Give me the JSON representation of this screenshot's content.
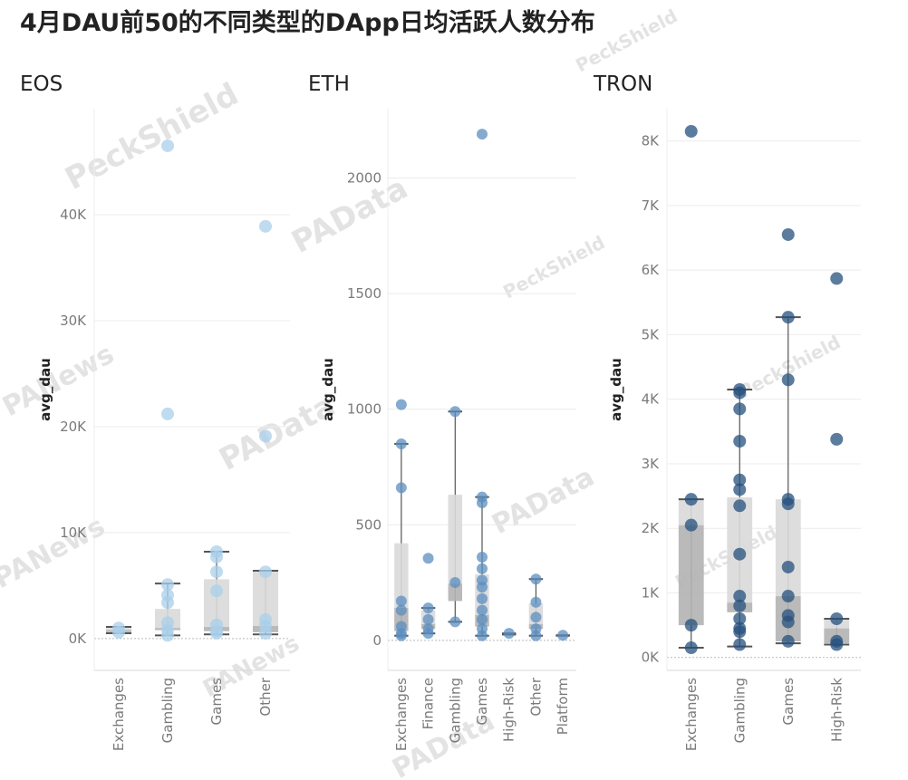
{
  "title": "4月DAU前50的不同类型的DApp日均活跃人数分布",
  "watermarks": [
    "PeckShield",
    "PAData",
    "PANews"
  ],
  "chart_data": [
    {
      "type": "box",
      "title": "EOS",
      "ylabel": "avg_dau",
      "color": "#a9cfeb",
      "ylim": [
        -3000,
        50000
      ],
      "yticks": [
        0,
        10000,
        20000,
        30000,
        40000
      ],
      "ytick_labels": [
        "0K",
        "10K",
        "20K",
        "30K",
        "40K"
      ],
      "categories": [
        "Exchanges",
        "Gambling",
        "Games",
        "Other"
      ],
      "boxes": [
        {
          "category": "Exchanges",
          "min": 500,
          "q1": 600,
          "median": 800,
          "q3": 1000,
          "max": 1100
        },
        {
          "category": "Gambling",
          "min": 300,
          "q1": 800,
          "median": 1000,
          "q3": 2800,
          "max": 5200
        },
        {
          "category": "Games",
          "min": 400,
          "q1": 700,
          "median": 1100,
          "q3": 5600,
          "max": 8200
        },
        {
          "category": "Other",
          "min": 400,
          "q1": 600,
          "median": 1200,
          "q3": 6400,
          "max": 6400
        }
      ],
      "points": [
        {
          "category": "Exchanges",
          "values": [
            600,
            1000
          ]
        },
        {
          "category": "Gambling",
          "values": [
            46500,
            21200,
            5100,
            4100,
            3400,
            1500,
            800,
            300
          ]
        },
        {
          "category": "Games",
          "values": [
            8200,
            7700,
            6300,
            4500,
            1300,
            700,
            500
          ]
        },
        {
          "category": "Other",
          "values": [
            38900,
            19100,
            6300,
            1800,
            1200,
            500
          ]
        }
      ]
    },
    {
      "type": "box",
      "title": "ETH",
      "ylabel": "avg_dau",
      "color": "#5b8dbf",
      "ylim": [
        -130,
        2300
      ],
      "yticks": [
        0,
        500,
        1000,
        1500,
        2000
      ],
      "ytick_labels": [
        "0",
        "500",
        "1000",
        "1500",
        "2000"
      ],
      "categories": [
        "Exchanges",
        "Finance",
        "Gambling",
        "Games",
        "High-Risk",
        "Other",
        "Platform"
      ],
      "boxes": [
        {
          "category": "Exchanges",
          "min": 20,
          "q1": 40,
          "median": 140,
          "q3": 420,
          "max": 850
        },
        {
          "category": "Finance",
          "min": 30,
          "q1": 50,
          "median": 70,
          "q3": 130,
          "max": 140
        },
        {
          "category": "Gambling",
          "min": 80,
          "q1": 170,
          "median": 245,
          "q3": 630,
          "max": 990
        },
        {
          "category": "Games",
          "min": 20,
          "q1": 60,
          "median": 110,
          "q3": 285,
          "max": 620
        },
        {
          "category": "High-Risk",
          "min": 25,
          "q1": 25,
          "median": 30,
          "q3": 30,
          "max": 30
        },
        {
          "category": "Other",
          "min": 20,
          "q1": 50,
          "median": 70,
          "q3": 160,
          "max": 265
        },
        {
          "category": "Platform",
          "min": 20,
          "q1": 20,
          "median": 22,
          "q3": 22,
          "max": 22
        }
      ],
      "points": [
        {
          "category": "Exchanges",
          "values": [
            1020,
            850,
            660,
            170,
            130,
            60,
            30,
            20
          ]
        },
        {
          "category": "Finance",
          "values": [
            355,
            140,
            90,
            50,
            30
          ]
        },
        {
          "category": "Gambling",
          "values": [
            990,
            250,
            80
          ]
        },
        {
          "category": "Games",
          "values": [
            2190,
            620,
            595,
            360,
            310,
            260,
            230,
            180,
            130,
            90,
            50,
            20
          ]
        },
        {
          "category": "High-Risk",
          "values": [
            30
          ]
        },
        {
          "category": "Other",
          "values": [
            265,
            165,
            100,
            50,
            20
          ]
        },
        {
          "category": "Platform",
          "values": [
            22
          ]
        }
      ]
    },
    {
      "type": "box",
      "title": "TRON",
      "ylabel": "avg_dau",
      "color": "#25507e",
      "ylim": [
        -200,
        8500
      ],
      "yticks": [
        0,
        1000,
        2000,
        3000,
        4000,
        5000,
        6000,
        7000,
        8000
      ],
      "ytick_labels": [
        "0K",
        "1K",
        "2K",
        "3K",
        "4K",
        "5K",
        "6K",
        "7K",
        "8K"
      ],
      "categories": [
        "Exchanges",
        "Gambling",
        "Games",
        "High-Risk"
      ],
      "boxes": [
        {
          "category": "Exchanges",
          "min": 150,
          "q1": 500,
          "median": 2050,
          "q3": 2450,
          "max": 2450
        },
        {
          "category": "Gambling",
          "min": 170,
          "q1": 700,
          "median": 850,
          "q3": 2480,
          "max": 4150
        },
        {
          "category": "Games",
          "min": 220,
          "q1": 250,
          "median": 950,
          "q3": 2450,
          "max": 5270
        },
        {
          "category": "High-Risk",
          "min": 200,
          "q1": 220,
          "median": 450,
          "q3": 600,
          "max": 600
        }
      ],
      "points": [
        {
          "category": "Exchanges",
          "values": [
            8150,
            2450,
            2050,
            500,
            150
          ]
        },
        {
          "category": "Gambling",
          "values": [
            4150,
            4100,
            3850,
            3350,
            2750,
            2600,
            2350,
            1600,
            950,
            800,
            600,
            450,
            400,
            200
          ]
        },
        {
          "category": "Games",
          "values": [
            6550,
            5270,
            4300,
            2450,
            2380,
            1400,
            950,
            650,
            550,
            250
          ]
        },
        {
          "category": "High-Risk",
          "values": [
            5870,
            3380,
            600,
            250,
            200
          ]
        }
      ]
    }
  ]
}
